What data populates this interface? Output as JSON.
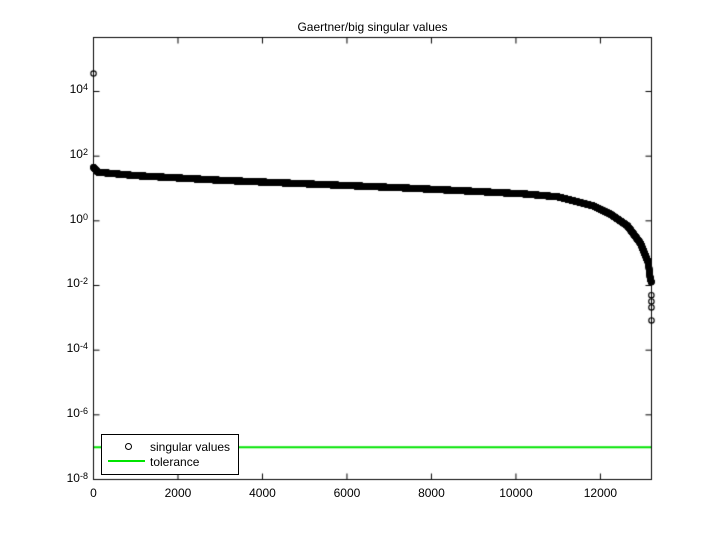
{
  "figure": {
    "background": "#ffffff"
  },
  "chart_data": {
    "type": "scatter",
    "title": "Gaertner/big singular values",
    "xlabel": "",
    "ylabel": "",
    "grid": false,
    "x_axis": {
      "scale": "linear",
      "min": 0,
      "max": 13209,
      "ticks": [
        0,
        2000,
        4000,
        6000,
        8000,
        10000,
        12000
      ]
    },
    "y_axis": {
      "scale": "log",
      "min_exp": -8,
      "max_exp": 5.67,
      "tick_base": "10",
      "tick_exponents": [
        4,
        2,
        0,
        -2,
        -4,
        -6,
        -8
      ]
    },
    "legend": {
      "position": "southwest",
      "entries": [
        {
          "label": "singular values",
          "marker": "open-circle",
          "color": "#000000"
        },
        {
          "label": "tolerance",
          "marker": "line",
          "color": "#00e400"
        }
      ]
    },
    "series": [
      {
        "name": "singular values",
        "type": "scatter",
        "marker": "open-circle",
        "color": "#000000",
        "n_points": 13209,
        "profile_anchors_index_value": [
          [
            1,
            36000
          ],
          [
            2,
            45
          ],
          [
            100,
            32
          ],
          [
            1000,
            25
          ],
          [
            3000,
            18
          ],
          [
            5000,
            14
          ],
          [
            7300,
            10.5
          ],
          [
            9000,
            8.2
          ],
          [
            10200,
            6.8
          ],
          [
            11000,
            5.5
          ],
          [
            11830,
            2.9
          ],
          [
            12240,
            1.6
          ],
          [
            12640,
            0.7
          ],
          [
            12950,
            0.2
          ],
          [
            13135,
            0.05
          ],
          [
            13175,
            0.018
          ],
          [
            13205,
            0.0126
          ]
        ],
        "tail_outliers_index_value": [
          [
            13206,
            0.005
          ],
          [
            13207,
            0.0032
          ],
          [
            13208,
            0.0021
          ],
          [
            13209,
            0.00083
          ]
        ]
      },
      {
        "name": "tolerance",
        "type": "hline",
        "color": "#00e400",
        "value": 1e-07
      }
    ]
  }
}
